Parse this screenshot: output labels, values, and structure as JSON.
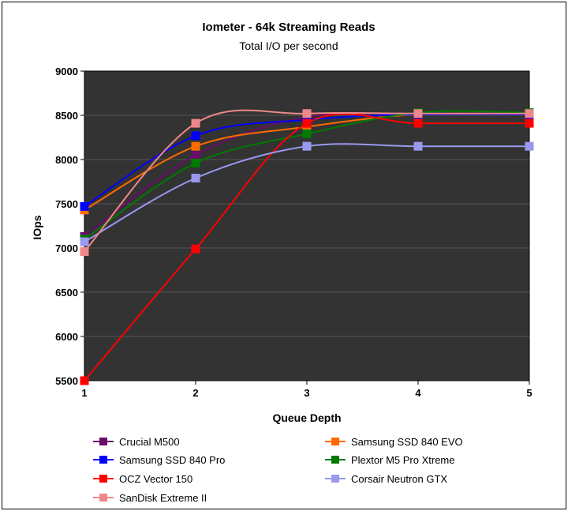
{
  "chart_data": {
    "type": "line",
    "title": "Iometer - 64k Streaming Reads",
    "subtitle": "Total I/O per second",
    "xlabel": "Queue Depth",
    "ylabel": "IOps",
    "x": [
      1,
      2,
      3,
      4,
      5
    ],
    "x_tick_labels": [
      "1",
      "2",
      "3",
      "4",
      "5"
    ],
    "xlim": [
      1,
      5
    ],
    "ylim": [
      5500,
      9000
    ],
    "y_ticks": [
      5500,
      6000,
      6500,
      7000,
      7500,
      8000,
      8500,
      9000
    ],
    "y_tick_labels": [
      "5500",
      "6000",
      "6500",
      "7000",
      "7500",
      "8000",
      "8500",
      "9000"
    ],
    "plot_background": "#333333",
    "legend_position": "bottom",
    "series": [
      {
        "name": "Crucial M500",
        "color": "#6a0d6a",
        "values": [
          7130,
          8050,
          8480,
          8510,
          8510
        ]
      },
      {
        "name": "Samsung SSD 840 EVO",
        "color": "#ff6a00",
        "values": [
          7430,
          8150,
          8370,
          8510,
          8510
        ]
      },
      {
        "name": "Samsung SSD 840 Pro",
        "color": "#0000ff",
        "values": [
          7470,
          8270,
          8450,
          8510,
          8510
        ]
      },
      {
        "name": "Plextor M5 Pro Xtreme",
        "color": "#007a00",
        "values": [
          7100,
          7960,
          8290,
          8530,
          8530
        ]
      },
      {
        "name": "OCZ Vector 150",
        "color": "#ff0000",
        "values": [
          5500,
          6990,
          8410,
          8410,
          8410
        ]
      },
      {
        "name": "Corsair Neutron GTX",
        "color": "#9999ee",
        "values": [
          7070,
          7790,
          8150,
          8150,
          8150
        ]
      },
      {
        "name": "SanDisk Extreme II",
        "color": "#ee8888",
        "values": [
          6960,
          8410,
          8520,
          8520,
          8520
        ]
      }
    ]
  }
}
